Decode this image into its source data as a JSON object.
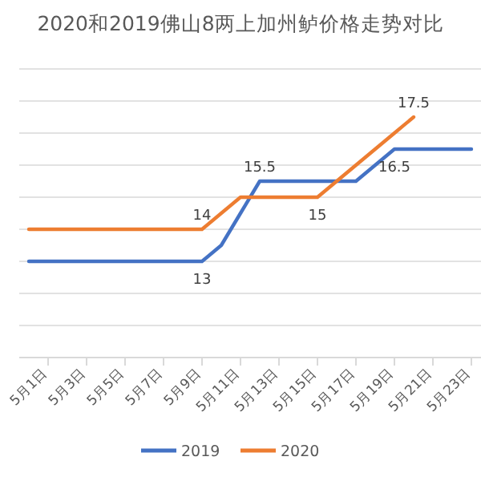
{
  "chart_data": {
    "type": "line",
    "title": "2020和2019佛山8两上加州鲈价格走势对比",
    "categories": [
      null,
      "5月1日",
      null,
      "5月3日",
      null,
      "5月5日",
      null,
      "5月7日",
      null,
      "5月9日",
      null,
      "5月11日",
      null,
      "5月13日",
      null,
      "5月15日",
      null,
      "5月17日",
      null,
      "5月19日",
      null,
      "5月21日",
      null,
      "5月23日"
    ],
    "series": [
      {
        "name": "2019",
        "color": "#4472c4",
        "values": [
          13,
          13,
          13,
          13,
          13,
          13,
          13,
          13,
          13,
          13,
          13.5,
          14.5,
          15.5,
          15.5,
          15.5,
          15.5,
          15.5,
          15.5,
          16,
          16.5,
          16.5,
          16.5,
          16.5,
          16.5
        ],
        "value_labels": [
          null,
          null,
          null,
          null,
          null,
          null,
          null,
          null,
          null,
          "13",
          null,
          null,
          "15.5",
          null,
          null,
          null,
          null,
          null,
          null,
          "16.5",
          null,
          null,
          null,
          null
        ]
      },
      {
        "name": "2020",
        "color": "#ed7d31",
        "values": [
          14,
          14,
          14,
          14,
          14,
          14,
          14,
          14,
          14,
          14,
          14.5,
          15,
          15,
          15,
          15,
          15,
          15.5,
          16,
          16.5,
          17,
          17.5,
          null,
          null,
          null
        ],
        "value_labels": [
          null,
          null,
          null,
          null,
          null,
          null,
          null,
          null,
          null,
          "14",
          null,
          null,
          null,
          null,
          null,
          "15",
          null,
          null,
          null,
          null,
          "17.5",
          null,
          null,
          null
        ]
      }
    ],
    "ylim": [
      10,
      19
    ],
    "yticks": [
      {
        "value": 10,
        "label": null
      },
      {
        "value": 11,
        "label": null
      },
      {
        "value": 12,
        "label": null
      },
      {
        "value": 13,
        "label": null
      },
      {
        "value": 14,
        "label": null
      },
      {
        "value": 15,
        "label": null
      },
      {
        "value": 16,
        "label": null
      },
      {
        "value": 17,
        "label": null
      },
      {
        "value": 18,
        "label": null
      },
      {
        "value": 19,
        "label": null
      }
    ],
    "tick_labels": "x",
    "grid": "y",
    "legend": "bottom",
    "marker": "none",
    "line_style": "solid"
  }
}
